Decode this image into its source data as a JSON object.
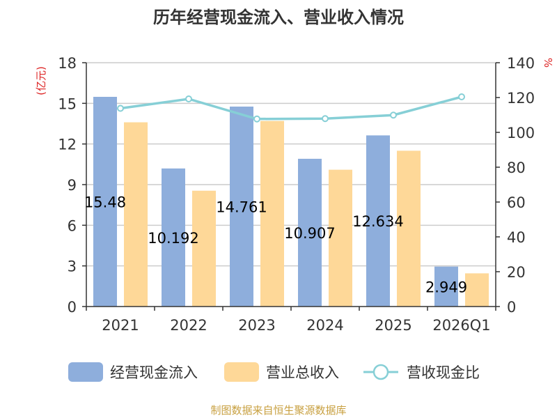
{
  "chart_data": {
    "type": "bar",
    "title": "历年经营现金流入、营业收入情况",
    "source": "制图数据来自恒生聚源数据库",
    "y_left_label": "(亿元)",
    "y_right_label": "%",
    "categories": [
      "2021",
      "2022",
      "2023",
      "2024",
      "2025",
      "2026Q1"
    ],
    "ylim_left": [
      0,
      18
    ],
    "yticks_left": [
      0,
      3,
      6,
      9,
      12,
      15,
      18
    ],
    "ylim_right": [
      0,
      140
    ],
    "yticks_right": [
      0,
      20,
      40,
      60,
      80,
      100,
      120,
      140
    ],
    "grid": true,
    "legend_position": "bottom",
    "series": [
      {
        "name": "经营现金流入",
        "kind": "bar",
        "axis": "left",
        "color": "#8eaedc",
        "values": [
          15.48,
          10.192,
          14.761,
          10.907,
          12.634,
          2.949
        ],
        "labels": [
          "15.48",
          "10.192",
          "14.761",
          "10.907",
          "12.634",
          "2.949"
        ]
      },
      {
        "name": "营业总收入",
        "kind": "bar",
        "axis": "left",
        "color": "#fed898",
        "values": [
          13.6,
          8.55,
          13.7,
          10.1,
          11.5,
          2.45
        ]
      },
      {
        "name": "营收现金比",
        "kind": "line",
        "axis": "right",
        "color": "#86cfd6",
        "values": [
          113.8,
          119.2,
          107.7,
          107.9,
          109.9,
          120.4
        ]
      }
    ]
  }
}
